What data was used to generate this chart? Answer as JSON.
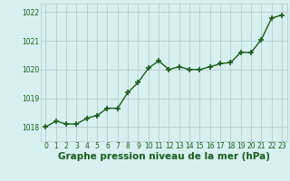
{
  "x": [
    0,
    1,
    2,
    3,
    4,
    5,
    6,
    7,
    8,
    9,
    10,
    11,
    12,
    13,
    14,
    15,
    16,
    17,
    18,
    19,
    20,
    21,
    22,
    23
  ],
  "y": [
    1018.0,
    1018.2,
    1018.1,
    1018.1,
    1018.3,
    1018.4,
    1018.65,
    1018.65,
    1019.2,
    1019.55,
    1020.05,
    1020.3,
    1020.0,
    1020.1,
    1020.0,
    1020.0,
    1020.1,
    1020.2,
    1020.25,
    1020.6,
    1020.6,
    1021.05,
    1021.8,
    1021.9
  ],
  "line_color": "#1a5c1a",
  "marker_color": "#1a5c1a",
  "bg_color": "#d6f0ef",
  "grid_color": "#b5cccc",
  "axis_label_color": "#1a5c1a",
  "xlabel": "Graphe pression niveau de la mer (hPa)",
  "ylim": [
    1017.5,
    1022.3
  ],
  "yticks": [
    1018,
    1019,
    1020,
    1021,
    1022
  ],
  "xticks": [
    0,
    1,
    2,
    3,
    4,
    5,
    6,
    7,
    8,
    9,
    10,
    11,
    12,
    13,
    14,
    15,
    16,
    17,
    18,
    19,
    20,
    21,
    22,
    23
  ],
  "tick_label_fontsize": 5.5,
  "xlabel_fontsize": 7.5,
  "marker_size": 4,
  "line_width": 1.0
}
